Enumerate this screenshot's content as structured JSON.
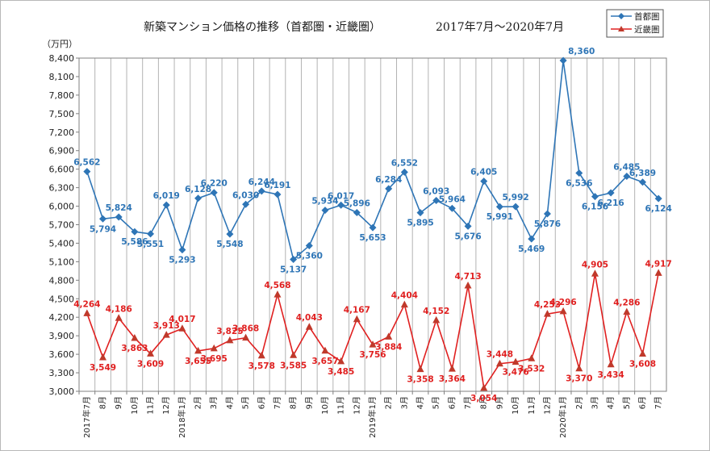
{
  "chart_data": {
    "type": "line",
    "title": "新築マンション価格の推移（首都圏・近畿圏）",
    "subtitle": "2017年7月～2020年7月",
    "ylabel": "（万円）",
    "xlabel": "",
    "ylim": [
      3000,
      8400
    ],
    "yticks": [
      "3,000",
      "3,300",
      "3,600",
      "3,900",
      "4,200",
      "4,500",
      "4,800",
      "5,100",
      "5,400",
      "5,700",
      "6,000",
      "6,300",
      "6,600",
      "6,900",
      "7,200",
      "7,500",
      "7,800",
      "8,100",
      "8,400"
    ],
    "grid": "vertical",
    "legend_position": "top-right",
    "categories": [
      "2017年7月",
      "8月",
      "9月",
      "10月",
      "11月",
      "12月",
      "2018年1月",
      "2月",
      "3月",
      "4月",
      "5月",
      "6月",
      "7月",
      "8月",
      "9月",
      "10月",
      "11月",
      "12月",
      "2019年1月",
      "2月",
      "3月",
      "4月",
      "5月",
      "6月",
      "7月",
      "8月",
      "9月",
      "10月",
      "11月",
      "12月",
      "2020年1月",
      "2月",
      "3月",
      "4月",
      "5月",
      "6月",
      "7月"
    ],
    "series": [
      {
        "name": "首都圏",
        "color": "#2e75b6",
        "marker": "diamond",
        "values": [
          6562,
          5794,
          5824,
          5586,
          5551,
          6019,
          5293,
          6128,
          6220,
          5548,
          6030,
          6244,
          6191,
          5137,
          5360,
          5934,
          6017,
          5896,
          5653,
          6284,
          6552,
          5895,
          6093,
          5964,
          5676,
          6405,
          5991,
          5992,
          5469,
          5876,
          8360,
          6536,
          6156,
          6216,
          6485,
          6389,
          6124
        ],
        "labels": [
          "6,562",
          "5,794",
          "5,824",
          "5,586",
          "5,551",
          "6,019",
          "5,293",
          "6,128",
          "6,220",
          "5,548",
          "6,030",
          "6,244",
          "6,191",
          "5,137",
          "5,360",
          "5,934",
          "6,017",
          "5,896",
          "5,653",
          "6,284",
          "6,552",
          "5,895",
          "6,093",
          "5,964",
          "5,676",
          "6,405",
          "5,991",
          "5,992",
          "5,469",
          "5,876",
          "8,360",
          "6,536",
          "6,156",
          "6,216",
          "6,485",
          "6,389",
          "6,124"
        ]
      },
      {
        "name": "近畿圏",
        "color": "#e02020",
        "marker": "triangle",
        "values": [
          4264,
          3549,
          4186,
          3863,
          3609,
          3913,
          4017,
          3655,
          3695,
          3825,
          3868,
          3578,
          4568,
          3585,
          4043,
          3657,
          3485,
          4167,
          3756,
          3884,
          4404,
          3358,
          4152,
          3364,
          4713,
          3054,
          3448,
          3476,
          3532,
          4253,
          4296,
          3370,
          4905,
          3434,
          4286,
          3608,
          4917
        ],
        "labels": [
          "4,264",
          "3,549",
          "4,186",
          "3,863",
          "3,609",
          "3,913",
          "4,017",
          "3,655",
          "3,695",
          "3,825",
          "3,868",
          "3,578",
          "4,568",
          "3,585",
          "4,043",
          "3,657",
          "3,485",
          "4,167",
          "3,756",
          "3,884",
          "4,404",
          "3,358",
          "4,152",
          "3,364",
          "4,713",
          "3,054",
          "3,448",
          "3,476",
          "3,532",
          "4,253",
          "4,296",
          "3,370",
          "4,905",
          "3,434",
          "4,286",
          "3,608",
          "4,917"
        ]
      }
    ]
  }
}
